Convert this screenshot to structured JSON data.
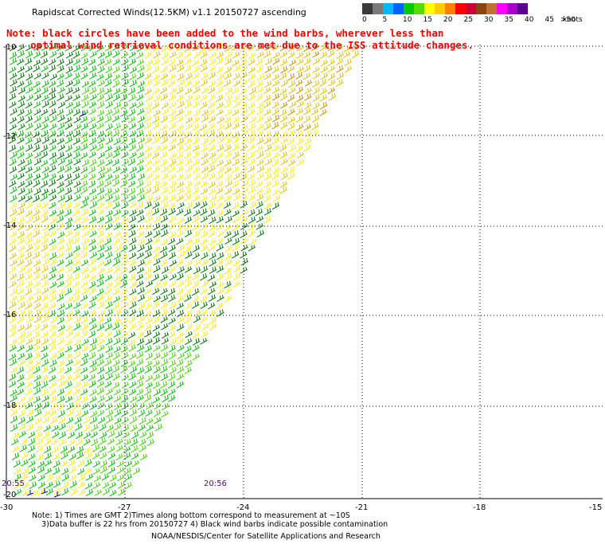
{
  "header": {
    "title": "Rapidscat Corrected Winds(12.5KM) v1.1 20150727 ascending",
    "note_line1": "Note: black circles have been added to the wind barbs, wherever less than",
    "note_line2": "    optimal wind retrieval conditions are met due to the ISS attitude changes."
  },
  "legend": {
    "labels": [
      "0",
      "5",
      "10",
      "15",
      "20",
      "25",
      "30",
      "35",
      "40",
      "45",
      ">50"
    ],
    "unit": "knots",
    "colors": [
      "#3a3a3a",
      "#7a7a7a",
      "#00b8ff",
      "#0064ff",
      "#00cc00",
      "#55dd00",
      "#ffff00",
      "#ffcc00",
      "#ff8000",
      "#ff0000",
      "#cc0033",
      "#8b4513",
      "#c07030",
      "#ff00ff",
      "#aa00cc",
      "#5a0090"
    ]
  },
  "map": {
    "lat_labels": [
      "-10",
      "-12",
      "-14",
      "-16",
      "-18",
      "-20"
    ],
    "lon_labels": [
      "-30",
      "-27",
      "-24",
      "-21",
      "-18",
      "-15"
    ],
    "swath_times": [
      "20:55",
      "20:56"
    ],
    "barb_colors": {
      "green_dark": "#007a00",
      "green": "#00c400",
      "green_light": "#44d600",
      "yellow": "#ffee00",
      "gold": "#e6c200",
      "orange": "#d09000",
      "blue": "#0000c0"
    }
  },
  "footer": {
    "note_line1": "Note: 1) Times are GMT 2)Times along bottom correspond to measurement at ~10S",
    "note_line2": "    3)Data buffer is 22 hrs from 20150727 4) Black wind barbs indicate possible contamination",
    "credit": "NOAA/NESDIS/Center for Satellite Applications and Research"
  }
}
